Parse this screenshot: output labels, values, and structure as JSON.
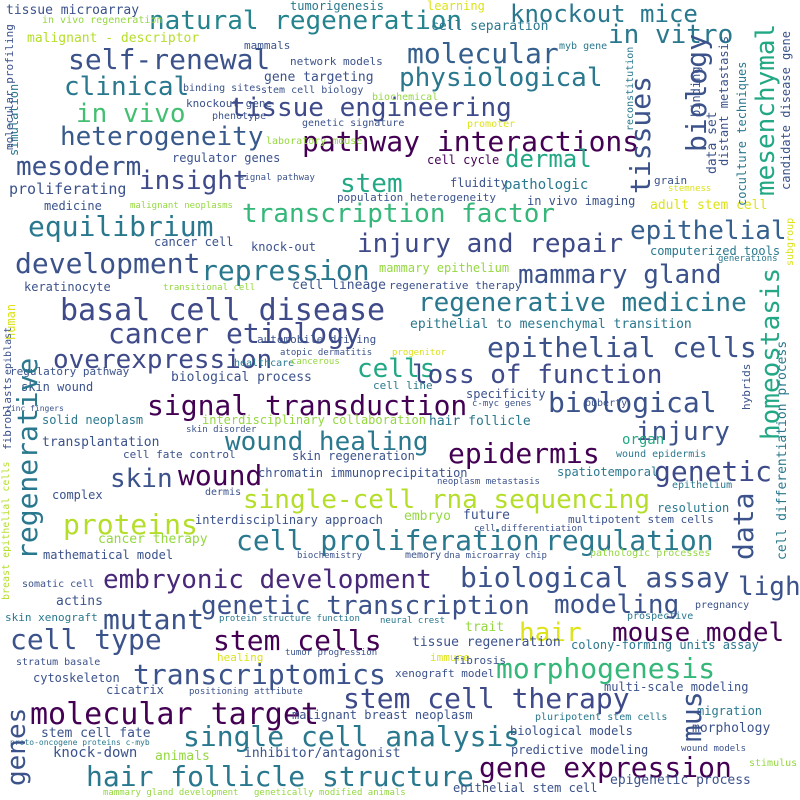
{
  "words": [
    {
      "text": "natural regeneration",
      "c": "#25838e"
    },
    {
      "text": "knockout mice",
      "c": "#2a788e"
    },
    {
      "text": "molecular",
      "c": "#355f8d"
    },
    {
      "text": "in vitro",
      "c": "#2a788e"
    },
    {
      "text": "self-renewal",
      "c": "#3b528b"
    },
    {
      "text": "physiological",
      "c": "#2a788e"
    },
    {
      "text": "clinical",
      "c": "#2a788e"
    },
    {
      "text": "tissue engineering",
      "c": "#3e4a89"
    },
    {
      "text": "in vivo",
      "c": "#43bf71"
    },
    {
      "text": "heterogeneity",
      "c": "#38598c"
    },
    {
      "text": "pathway interactions",
      "c": "#440154"
    },
    {
      "text": "mesoderm",
      "c": "#3b528b"
    },
    {
      "text": "dermal",
      "c": "#22a884"
    },
    {
      "text": "insight",
      "c": "#3e4a89"
    },
    {
      "text": "stem",
      "c": "#22a884"
    },
    {
      "text": "transcription factor",
      "c": "#35b779"
    },
    {
      "text": "equilibrium",
      "c": "#2a788e"
    },
    {
      "text": "epithelial",
      "c": "#355f8d"
    },
    {
      "text": "injury and repair",
      "c": "#3e4a89"
    },
    {
      "text": "development",
      "c": "#3b528b"
    },
    {
      "text": "repression",
      "c": "#2a788e"
    },
    {
      "text": "mammary gland",
      "c": "#3b528b"
    },
    {
      "text": "regenerative medicine",
      "c": "#2a788e"
    },
    {
      "text": "basal cell disease",
      "c": "#3e4a89"
    },
    {
      "text": "cancer etiology",
      "c": "#3e4a89"
    },
    {
      "text": "epithelial cells",
      "c": "#3b528b"
    },
    {
      "text": "overexpression",
      "c": "#3e4a89"
    },
    {
      "text": "cells",
      "c": "#22a884"
    },
    {
      "text": "loss of function",
      "c": "#3e4a89"
    },
    {
      "text": "signal transduction",
      "c": "#440154"
    },
    {
      "text": "biological",
      "c": "#3b528b"
    },
    {
      "text": "wound healing",
      "c": "#2a788e"
    },
    {
      "text": "injury",
      "c": "#3b528b"
    },
    {
      "text": "epidermis",
      "c": "#440154"
    },
    {
      "text": "skin",
      "c": "#3b528b"
    },
    {
      "text": "wound",
      "c": "#440154"
    },
    {
      "text": "genetic",
      "c": "#3e4a89"
    },
    {
      "text": "single-cell rna sequencing",
      "c": "#b5de2b"
    },
    {
      "text": "proteins",
      "c": "#b5de2b"
    },
    {
      "text": "cell proliferation",
      "c": "#2a788e"
    },
    {
      "text": "regulation",
      "c": "#2a788e"
    },
    {
      "text": "embryonic development",
      "c": "#482878"
    },
    {
      "text": "biological assay",
      "c": "#3b528b"
    },
    {
      "text": "light",
      "c": "#3b528b"
    },
    {
      "text": "mutant",
      "c": "#3b528b"
    },
    {
      "text": "genetic transcription",
      "c": "#3b528b"
    },
    {
      "text": "modeling",
      "c": "#3b528b"
    },
    {
      "text": "cell type",
      "c": "#3b528b"
    },
    {
      "text": "stem cells",
      "c": "#440154"
    },
    {
      "text": "hair",
      "c": "#dde318"
    },
    {
      "text": "mouse model",
      "c": "#440154"
    },
    {
      "text": "transcriptomics",
      "c": "#3b528b"
    },
    {
      "text": "morphogenesis",
      "c": "#35b779"
    },
    {
      "text": "stem cell therapy",
      "c": "#3e4a89"
    },
    {
      "text": "molecular target",
      "c": "#440154"
    },
    {
      "text": "single cell analysis",
      "c": "#2a788e"
    },
    {
      "text": "gene expression",
      "c": "#440154"
    },
    {
      "text": "hair follicle structure",
      "c": "#2a788e"
    },
    {
      "text": "tumorigenesis",
      "c": "#2a788e"
    },
    {
      "text": "learning",
      "c": "#dde318"
    },
    {
      "text": "tissue microarray",
      "c": "#3b528b"
    },
    {
      "text": "in vivo regeneration",
      "c": "#95d840"
    },
    {
      "text": "cell separation",
      "c": "#2a788e"
    },
    {
      "text": "malignant - descriptor",
      "c": "#b5de2b"
    },
    {
      "text": "mammals",
      "c": "#3b528b"
    },
    {
      "text": "myb gene",
      "c": "#2a788e"
    },
    {
      "text": "network models",
      "c": "#3b528b"
    },
    {
      "text": "gene targeting",
      "c": "#3b528b"
    },
    {
      "text": "binding sites",
      "c": "#3b528b"
    },
    {
      "text": "stem cell biology",
      "c": "#3b528b"
    },
    {
      "text": "biochemical",
      "c": "#95d840"
    },
    {
      "text": "knockout gene",
      "c": "#3b528b"
    },
    {
      "text": "phenotype",
      "c": "#3b528b"
    },
    {
      "text": "genetic signature",
      "c": "#3b528b"
    },
    {
      "text": "promoter",
      "c": "#dde318"
    },
    {
      "text": "laboratory mouse",
      "c": "#95d840"
    },
    {
      "text": "regulator genes",
      "c": "#3b528b"
    },
    {
      "text": "cell cycle",
      "c": "#440154"
    },
    {
      "text": "signal pathway",
      "c": "#3b528b"
    },
    {
      "text": "malignant neoplasms",
      "c": "#95d840"
    },
    {
      "text": "fluidity",
      "c": "#3b528b"
    },
    {
      "text": "population heterogeneity",
      "c": "#3b528b"
    },
    {
      "text": "proliferating",
      "c": "#3b528b"
    },
    {
      "text": "pathologic",
      "c": "#2a788e"
    },
    {
      "text": "grain",
      "c": "#3b528b"
    },
    {
      "text": "stemness",
      "c": "#dde318"
    },
    {
      "text": "medicine",
      "c": "#3b528b"
    },
    {
      "text": "in vivo imaging",
      "c": "#3b528b"
    },
    {
      "text": "adult stem cell",
      "c": "#dde318"
    },
    {
      "text": "cancer cell",
      "c": "#3b528b"
    },
    {
      "text": "knock-out",
      "c": "#3b528b"
    },
    {
      "text": "computerized tools",
      "c": "#2a788e"
    },
    {
      "text": "generations",
      "c": "#2a788e"
    },
    {
      "text": "cell lineage",
      "c": "#3b528b"
    },
    {
      "text": "mammary epithelium",
      "c": "#95d840"
    },
    {
      "text": "transitional cell",
      "c": "#95d840"
    },
    {
      "text": "keratinocyte",
      "c": "#3b528b"
    },
    {
      "text": "regenerative therapy",
      "c": "#3b528b"
    },
    {
      "text": "epithelial to mesenchymal transition",
      "c": "#2a788e"
    },
    {
      "text": "automobile driving",
      "c": "#3b528b"
    },
    {
      "text": "atopic dermatitis",
      "c": "#3b528b"
    },
    {
      "text": "progenitor",
      "c": "#dde318"
    },
    {
      "text": "healthcare",
      "c": "#2a788e"
    },
    {
      "text": "cancerous",
      "c": "#95d840"
    },
    {
      "text": "regulatory pathway",
      "c": "#3b528b"
    },
    {
      "text": "biological process",
      "c": "#3b528b"
    },
    {
      "text": "cell line",
      "c": "#2a788e"
    },
    {
      "text": "skin wound",
      "c": "#3b528b"
    },
    {
      "text": "specificity",
      "c": "#3b528b"
    },
    {
      "text": "c-myc genes",
      "c": "#3b528b"
    },
    {
      "text": "zinc fingers",
      "c": "#3b528b"
    },
    {
      "text": "puberty",
      "c": "#3b528b"
    },
    {
      "text": "solid neoplasm",
      "c": "#2a788e"
    },
    {
      "text": "interdisciplinary collaboration",
      "c": "#95d840"
    },
    {
      "text": "hair follicle",
      "c": "#2a788e"
    },
    {
      "text": "skin disorder",
      "c": "#3b528b"
    },
    {
      "text": "organ",
      "c": "#22a884"
    },
    {
      "text": "wound epidermis",
      "c": "#2a788e"
    },
    {
      "text": "transplantation",
      "c": "#3b528b"
    },
    {
      "text": "cell fate control",
      "c": "#3b528b"
    },
    {
      "text": "skin regeneration",
      "c": "#3b528b"
    },
    {
      "text": "chromatin immunoprecipitation",
      "c": "#3b528b"
    },
    {
      "text": "spatiotemporal",
      "c": "#2a788e"
    },
    {
      "text": "neoplasm metastasis",
      "c": "#3b528b"
    },
    {
      "text": "epithelium",
      "c": "#2a788e"
    },
    {
      "text": "complex",
      "c": "#3b528b"
    },
    {
      "text": "dermis",
      "c": "#3b528b"
    },
    {
      "text": "resolution",
      "c": "#2a788e"
    },
    {
      "text": "interdisciplinary approach",
      "c": "#3b528b"
    },
    {
      "text": "embryo",
      "c": "#95d840"
    },
    {
      "text": "future",
      "c": "#3b528b"
    },
    {
      "text": "multipotent stem cells",
      "c": "#3b528b"
    },
    {
      "text": "cancer therapy",
      "c": "#95d840"
    },
    {
      "text": "cell differentiation",
      "c": "#3b528b"
    },
    {
      "text": "mathematical model",
      "c": "#3b528b"
    },
    {
      "text": "biochemistry",
      "c": "#3b528b"
    },
    {
      "text": "memory",
      "c": "#3b528b"
    },
    {
      "text": "dna microarray chip",
      "c": "#3b528b"
    },
    {
      "text": "pathologic processes",
      "c": "#95d840"
    },
    {
      "text": "somatic cell",
      "c": "#3b528b"
    },
    {
      "text": "actins",
      "c": "#3b528b"
    },
    {
      "text": "pregnancy",
      "c": "#3b528b"
    },
    {
      "text": "skin xenograft",
      "c": "#2a788e"
    },
    {
      "text": "protein structure function",
      "c": "#2a788e"
    },
    {
      "text": "neural crest",
      "c": "#2a788e"
    },
    {
      "text": "trait",
      "c": "#95d840"
    },
    {
      "text": "prospective",
      "c": "#2a788e"
    },
    {
      "text": "tissue regeneration",
      "c": "#3b528b"
    },
    {
      "text": "colony-forming units assay",
      "c": "#2a788e"
    },
    {
      "text": "healing",
      "c": "#dde318"
    },
    {
      "text": "tumor progression",
      "c": "#3b528b"
    },
    {
      "text": "immune",
      "c": "#dde318"
    },
    {
      "text": "fibrosis",
      "c": "#3b528b"
    },
    {
      "text": "stratum basale",
      "c": "#3b528b"
    },
    {
      "text": "cytoskeleton",
      "c": "#3b528b"
    },
    {
      "text": "xenograft model",
      "c": "#3b528b"
    },
    {
      "text": "cicatrix",
      "c": "#3b528b"
    },
    {
      "text": "positioning attribute",
      "c": "#3b528b"
    },
    {
      "text": "multi-scale modeling",
      "c": "#3b528b"
    },
    {
      "text": "malignant breast neoplasm",
      "c": "#3b528b"
    },
    {
      "text": "migration",
      "c": "#2a788e"
    },
    {
      "text": "stem cell fate",
      "c": "#3b528b"
    },
    {
      "text": "pluripotent stem cells",
      "c": "#2a788e"
    },
    {
      "text": "proto-oncogene proteins c-myb",
      "c": "#2a788e"
    },
    {
      "text": "morphology",
      "c": "#3b528b"
    },
    {
      "text": "knock-down",
      "c": "#3b528b"
    },
    {
      "text": "animals",
      "c": "#95d840"
    },
    {
      "text": "inhibitor/antagonist",
      "c": "#3b528b"
    },
    {
      "text": "biological models",
      "c": "#3b528b"
    },
    {
      "text": "predictive modeling",
      "c": "#3b528b"
    },
    {
      "text": "wound models",
      "c": "#3b528b"
    },
    {
      "text": "stimulus",
      "c": "#95d840"
    },
    {
      "text": "epigenetic process",
      "c": "#3b528b"
    },
    {
      "text": "epithelial stem cell",
      "c": "#3b528b"
    },
    {
      "text": "mammary gland development",
      "c": "#95d840"
    },
    {
      "text": "genetically modified animals",
      "c": "#95d840"
    },
    {
      "text": "biology",
      "c": "#3b528b"
    },
    {
      "text": "tissues",
      "c": "#3b528b"
    },
    {
      "text": "mesenchymal",
      "c": "#22a884"
    },
    {
      "text": "candidate disease gene",
      "c": "#3b528b"
    },
    {
      "text": "binding",
      "c": "#3b528b"
    },
    {
      "text": "distant metastasis",
      "c": "#3b528b"
    },
    {
      "text": "coculture techniques",
      "c": "#2a788e"
    },
    {
      "text": "reconstitution",
      "c": "#2a788e"
    },
    {
      "text": "data set",
      "c": "#3b528b"
    },
    {
      "text": "homeostasis",
      "c": "#22a884"
    },
    {
      "text": "cell differentiation process",
      "c": "#2a788e"
    },
    {
      "text": "subgroup",
      "c": "#dde318"
    },
    {
      "text": "data",
      "c": "#3b528b"
    },
    {
      "text": "mus",
      "c": "#3b528b"
    },
    {
      "text": "hybrids",
      "c": "#3b528b"
    },
    {
      "text": "regenerative",
      "c": "#2a788e"
    },
    {
      "text": "genes",
      "c": "#3b528b"
    },
    {
      "text": "breast epithelial cells",
      "c": "#b5de2b"
    },
    {
      "text": "fibroblasts",
      "c": "#3b528b"
    },
    {
      "text": "human",
      "c": "#dde318"
    },
    {
      "text": "epiblast",
      "c": "#3b528b"
    },
    {
      "text": "simulation",
      "c": "#2a788e"
    },
    {
      "text": "molecular profiling",
      "c": "#3b528b"
    }
  ]
}
